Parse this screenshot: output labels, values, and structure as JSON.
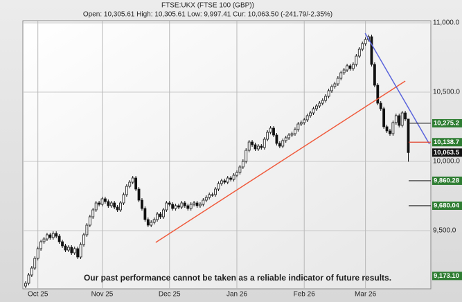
{
  "chart_data": {
    "type": "candlestick",
    "title": "FTSE:UKX (FTSE 100 (GBP))",
    "subtitle": "Open: 10,305.61 High: 10,305.61 Low: 9,997.41 Cur: 10,063.50 (-241.79/-2.35%)",
    "annotation": "Our past performance cannot be taken as a reliable indicator of future results.",
    "categories": [
      null,
      null,
      null,
      null,
      "Oct 25",
      null,
      null,
      null,
      null,
      null,
      null,
      null,
      null,
      null,
      null,
      null,
      null,
      null,
      null,
      null,
      null,
      null,
      null,
      null,
      null,
      "Nov 25",
      null,
      null,
      null,
      null,
      null,
      null,
      null,
      null,
      null,
      null,
      null,
      null,
      null,
      null,
      null,
      null,
      null,
      null,
      null,
      null,
      null,
      "Dec 25",
      null,
      null,
      null,
      null,
      null,
      null,
      null,
      null,
      null,
      null,
      null,
      null,
      null,
      null,
      null,
      null,
      null,
      null,
      null,
      null,
      null,
      "Jan 26",
      null,
      null,
      null,
      null,
      null,
      null,
      null,
      null,
      null,
      null,
      null,
      null,
      null,
      null,
      null,
      null,
      null,
      null,
      null,
      null,
      null,
      "Feb 26",
      null,
      null,
      null,
      null,
      null,
      null,
      null,
      null,
      null,
      null,
      null,
      null,
      null,
      null,
      null,
      null,
      null,
      null,
      null,
      "Mar 26",
      null,
      null,
      null,
      null,
      null,
      null,
      null,
      null,
      null,
      null,
      null,
      null,
      null,
      null
    ],
    "open": [
      9100,
      9120,
      9180,
      9230,
      9300,
      9370,
      9420,
      9440,
      9470,
      9450,
      9480,
      9460,
      9420,
      9390,
      9360,
      9380,
      9340,
      9370,
      9310,
      9400,
      9470,
      9540,
      9600,
      9650,
      9700,
      9690,
      9730,
      9710,
      9680,
      9700,
      9670,
      9650,
      9700,
      9760,
      9820,
      9850,
      9880,
      9800,
      9720,
      9660,
      9580,
      9540,
      9560,
      9580,
      9620,
      9600,
      9650,
      9700,
      9690,
      9660,
      9680,
      9670,
      9700,
      9680,
      9660,
      9690,
      9700,
      9680,
      9690,
      9720,
      9740,
      9760,
      9760,
      9800,
      9840,
      9860,
      9850,
      9880,
      9870,
      9900,
      9920,
      9960,
      10000,
      10080,
      10140,
      10120,
      10090,
      10110,
      10100,
      10160,
      10210,
      10240,
      10190,
      10130,
      10110,
      10150,
      10170,
      10190,
      10200,
      10230,
      10270,
      10280,
      10300,
      10330,
      10350,
      10380,
      10400,
      10420,
      10440,
      10470,
      10510,
      10540,
      10560,
      10600,
      10640,
      10660,
      10690,
      10670,
      10700,
      10760,
      10810,
      10850,
      10880,
      10900,
      10700,
      10550,
      10420,
      10380,
      10250,
      10220,
      10200,
      10280,
      10330,
      10260,
      10350,
      10305.61
    ],
    "high": [
      9135,
      9195,
      9245,
      9315,
      9385,
      9435,
      9455,
      9485,
      9485,
      9495,
      9495,
      9475,
      9435,
      9405,
      9395,
      9395,
      9385,
      9385,
      9415,
      9485,
      9555,
      9615,
      9665,
      9715,
      9715,
      9745,
      9745,
      9725,
      9715,
      9715,
      9685,
      9715,
      9775,
      9835,
      9865,
      9895,
      9895,
      9815,
      9735,
      9675,
      9595,
      9575,
      9595,
      9635,
      9635,
      9665,
      9715,
      9715,
      9705,
      9695,
      9695,
      9715,
      9715,
      9695,
      9705,
      9715,
      9715,
      9705,
      9735,
      9755,
      9775,
      9775,
      9815,
      9855,
      9875,
      9875,
      9895,
      9895,
      9915,
      9935,
      9975,
      10015,
      10095,
      10155,
      10155,
      10135,
      10125,
      10125,
      10175,
      10225,
      10255,
      10255,
      10205,
      10145,
      10165,
      10185,
      10205,
      10215,
      10245,
      10285,
      10295,
      10315,
      10345,
      10365,
      10395,
      10415,
      10435,
      10455,
      10485,
      10525,
      10555,
      10575,
      10615,
      10655,
      10675,
      10705,
      10705,
      10715,
      10775,
      10825,
      10865,
      10895,
      10915,
      10915,
      10715,
      10565,
      10435,
      10395,
      10265,
      10235,
      10295,
      10345,
      10345,
      10365,
      10365,
      10305.61
    ],
    "low": [
      9085,
      9105,
      9165,
      9215,
      9285,
      9355,
      9405,
      9425,
      9435,
      9435,
      9445,
      9405,
      9375,
      9345,
      9345,
      9325,
      9325,
      9295,
      9295,
      9385,
      9455,
      9525,
      9585,
      9635,
      9675,
      9675,
      9695,
      9665,
      9665,
      9655,
      9635,
      9635,
      9685,
      9745,
      9805,
      9835,
      9785,
      9705,
      9645,
      9565,
      9525,
      9525,
      9545,
      9565,
      9585,
      9585,
      9635,
      9675,
      9645,
      9645,
      9655,
      9655,
      9665,
      9645,
      9645,
      9675,
      9665,
      9665,
      9675,
      9705,
      9725,
      9745,
      9745,
      9785,
      9825,
      9835,
      9835,
      9855,
      9855,
      9885,
      9905,
      9945,
      9985,
      10065,
      10105,
      10075,
      10075,
      10085,
      10085,
      10145,
      10195,
      10175,
      10115,
      10095,
      10095,
      10135,
      10155,
      10175,
      10185,
      10215,
      10255,
      10265,
      10285,
      10315,
      10335,
      10365,
      10385,
      10405,
      10425,
      10455,
      10495,
      10525,
      10545,
      10585,
      10625,
      10645,
      10655,
      10655,
      10685,
      10745,
      10795,
      10835,
      10865,
      10685,
      10535,
      10405,
      10365,
      10235,
      10205,
      10185,
      10185,
      10265,
      10245,
      10245,
      10291,
      9997.41
    ],
    "close": [
      9120,
      9180,
      9230,
      9300,
      9370,
      9420,
      9440,
      9470,
      9450,
      9480,
      9460,
      9420,
      9390,
      9360,
      9380,
      9340,
      9370,
      9310,
      9400,
      9470,
      9540,
      9600,
      9650,
      9700,
      9690,
      9730,
      9710,
      9680,
      9700,
      9670,
      9650,
      9700,
      9760,
      9820,
      9850,
      9880,
      9800,
      9720,
      9660,
      9580,
      9540,
      9560,
      9580,
      9620,
      9600,
      9650,
      9700,
      9690,
      9660,
      9680,
      9670,
      9700,
      9680,
      9660,
      9690,
      9700,
      9680,
      9690,
      9720,
      9740,
      9760,
      9760,
      9800,
      9840,
      9860,
      9850,
      9880,
      9870,
      9900,
      9920,
      9960,
      10000,
      10080,
      10140,
      10120,
      10090,
      10110,
      10100,
      10160,
      10210,
      10240,
      10190,
      10130,
      10110,
      10150,
      10170,
      10190,
      10200,
      10230,
      10270,
      10280,
      10300,
      10330,
      10350,
      10380,
      10400,
      10420,
      10440,
      10470,
      10510,
      10540,
      10560,
      10600,
      10640,
      10660,
      10690,
      10670,
      10700,
      10760,
      10810,
      10850,
      10880,
      10900,
      10700,
      10550,
      10420,
      10380,
      10250,
      10220,
      10200,
      10280,
      10330,
      10260,
      10350,
      10306,
      10063.5
    ],
    "ylim": [
      9080,
      11015
    ],
    "yticks": [
      {
        "value": 9500,
        "label": "9,500.0"
      },
      {
        "value": 10000,
        "label": "10,000.0"
      },
      {
        "value": 10500,
        "label": "10,500.0"
      },
      {
        "value": 11000,
        "label": "11,000.0"
      }
    ],
    "grid": true,
    "trend_lines": [
      {
        "color": "#f05a3c",
        "x": [
          42.5,
          124
        ],
        "y": [
          9415,
          10580
        ]
      },
      {
        "color": "#5a64dc",
        "x": [
          110.9,
          131.9
        ],
        "y": [
          10925,
          10125
        ]
      }
    ],
    "levels": [
      {
        "value": 10275.2,
        "label": "10,275.2",
        "box": "#2e7d32",
        "line": "#333333"
      },
      {
        "value": 10138.7,
        "label": "10,138.7",
        "box": "#2e7d32",
        "line": "#e0402a"
      },
      {
        "value": 10063.5,
        "label": "10,063.5",
        "box": "#111111"
      },
      {
        "value": 9860.28,
        "label": "9,860.28",
        "box": "#2e7d32",
        "line": "#222222"
      },
      {
        "value": 9680.04,
        "label": "9,680.04",
        "box": "#2e7d32",
        "line": "#222222"
      },
      {
        "value": 9173.1,
        "label": "9,173.10",
        "box": "#2e7d32"
      }
    ]
  }
}
